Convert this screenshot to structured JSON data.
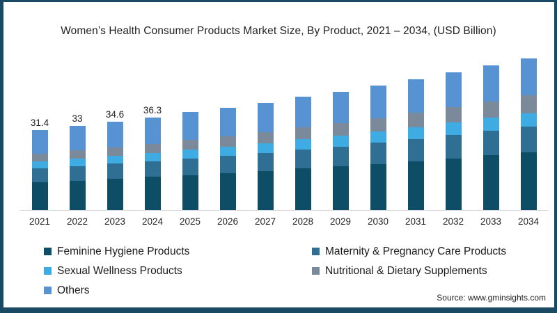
{
  "frame": {
    "border_color": "#1a4a63",
    "background": "#ffffff"
  },
  "title": "Women’s Health Consumer Products Market Size, By Product, 2021 – 2034, (USD Billion)",
  "source_note": "Source: www.gminsights.com",
  "chart_data": {
    "type": "bar",
    "stacked": true,
    "title": "Women’s Health Consumer Products Market Size, By Product, 2021 – 2034, (USD Billion)",
    "unit": "USD Billion",
    "categories": [
      "2021",
      "2022",
      "2023",
      "2024",
      "2025",
      "2026",
      "2027",
      "2028",
      "2029",
      "2030",
      "2031",
      "2032",
      "2033",
      "2034"
    ],
    "series": [
      {
        "name": "Feminine Hygiene Products",
        "color": "#0d4e66",
        "values": [
          11.0,
          11.6,
          12.3,
          13.0,
          13.8,
          14.5,
          15.3,
          16.3,
          17.1,
          18.1,
          19.2,
          20.3,
          21.5,
          22.6
        ]
      },
      {
        "name": "Maternity & Pregnancy Care Products",
        "color": "#2e6f93",
        "values": [
          5.3,
          5.6,
          5.9,
          6.2,
          6.5,
          6.8,
          7.2,
          7.6,
          7.9,
          8.3,
          8.7,
          9.2,
          9.7,
          10.1
        ]
      },
      {
        "name": "Sexual Wellness Products",
        "color": "#3fabe3",
        "values": [
          2.8,
          3.0,
          3.1,
          3.3,
          3.5,
          3.6,
          3.8,
          4.0,
          4.2,
          4.4,
          4.6,
          4.9,
          5.1,
          5.4
        ]
      },
      {
        "name": "Nutritional & Dietary Supplements",
        "color": "#7b8a9b",
        "values": [
          3.0,
          3.2,
          3.4,
          3.6,
          3.9,
          4.1,
          4.4,
          4.7,
          5.0,
          5.3,
          5.7,
          6.1,
          6.4,
          6.9
        ]
      },
      {
        "name": "Others",
        "color": "#5793d3",
        "values": [
          9.3,
          9.6,
          9.9,
          10.2,
          10.8,
          11.2,
          11.4,
          11.9,
          12.2,
          12.8,
          13.2,
          13.6,
          14.1,
          14.6
        ]
      }
    ],
    "totals": [
      31.4,
      33.0,
      34.6,
      36.3,
      38.5,
      40.2,
      42.1,
      44.5,
      46.4,
      48.9,
      51.4,
      54.1,
      56.8,
      59.6
    ],
    "visible_total_labels": [
      "31.4",
      "33",
      "34.6",
      "36.3",
      "",
      "",
      "",
      "",
      "",
      "",
      "",
      "",
      "",
      ""
    ],
    "xlabel": "",
    "ylabel": "",
    "y_axis_shown": false,
    "grid": false,
    "baseline_color": "#d9d9d9",
    "legend_position": "bottom-two-columns"
  }
}
